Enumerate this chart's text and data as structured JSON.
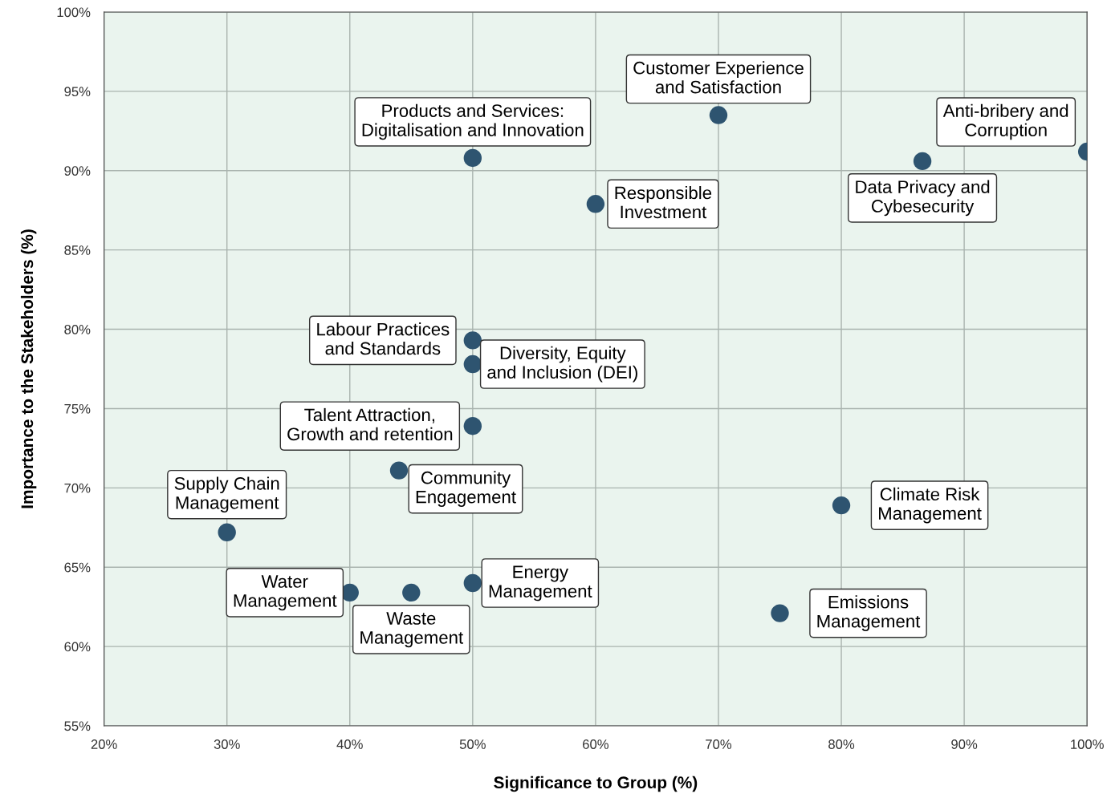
{
  "chart_data": {
    "type": "scatter",
    "xlabel": "Significance to Group (%)",
    "ylabel": "Importance to the Stakeholders (%)",
    "x": [
      70,
      50,
      60,
      100,
      86.6,
      50,
      50,
      50,
      44,
      30,
      80,
      40,
      45,
      50,
      75
    ],
    "series": [
      {
        "color": "#2e5470",
        "values": [
          93.5,
          90.8,
          87.9,
          91.2,
          90.6,
          79.3,
          77.8,
          73.9,
          71.1,
          67.2,
          68.9,
          63.4,
          63.4,
          64.0,
          62.1
        ]
      }
    ],
    "annotations": [
      {
        "text": "Customer Experience\nand Satisfaction",
        "x": 70,
        "y": 93.5
      },
      {
        "text": "Products and Services:\nDigitalisation and Innovation",
        "x": 50,
        "y": 90.8
      },
      {
        "text": "Responsible\nInvestment",
        "x": 60,
        "y": 87.9
      },
      {
        "text": "Anti-bribery and\nCorruption",
        "x": 100,
        "y": 91.2
      },
      {
        "text": "Data Privacy and\nCybesecurity",
        "x": 86.6,
        "y": 90.6
      },
      {
        "text": "Labour Practices\nand Standards",
        "x": 50,
        "y": 79.3
      },
      {
        "text": "Diversity, Equity\nand Inclusion (DEI)",
        "x": 50,
        "y": 77.8
      },
      {
        "text": "Talent Attraction,\nGrowth and retention",
        "x": 50,
        "y": 73.9
      },
      {
        "text": "Community\nEngagement",
        "x": 44,
        "y": 71.1
      },
      {
        "text": "Supply Chain\nManagement",
        "x": 30,
        "y": 67.2
      },
      {
        "text": "Climate Risk\nManagement",
        "x": 80,
        "y": 68.9
      },
      {
        "text": "Water\nManagement",
        "x": 40,
        "y": 63.4
      },
      {
        "text": "Waste\nManagement",
        "x": 45,
        "y": 63.4
      },
      {
        "text": "Energy\nManagement",
        "x": 50,
        "y": 64.0
      },
      {
        "text": "Emissions\nManagement",
        "x": 75,
        "y": 62.1
      }
    ],
    "xlim": [
      20,
      100
    ],
    "xticks": [
      {
        "value": 20,
        "label": "20%"
      },
      {
        "value": 30,
        "label": "30%"
      },
      {
        "value": 40,
        "label": "40%"
      },
      {
        "value": 50,
        "label": "50%"
      },
      {
        "value": 60,
        "label": "60%"
      },
      {
        "value": 70,
        "label": "70%"
      },
      {
        "value": 80,
        "label": "80%"
      },
      {
        "value": 90,
        "label": "90%"
      },
      {
        "value": 100,
        "label": "100%"
      }
    ],
    "ylim": [
      55,
      100
    ],
    "yticks": [
      {
        "value": 55,
        "label": "55%"
      },
      {
        "value": 60,
        "label": "60%"
      },
      {
        "value": 65,
        "label": "65%"
      },
      {
        "value": 70,
        "label": "70%"
      },
      {
        "value": 75,
        "label": "75%"
      },
      {
        "value": 80,
        "label": "80%"
      },
      {
        "value": 85,
        "label": "85%"
      },
      {
        "value": 90,
        "label": "90%"
      },
      {
        "value": 95,
        "label": "95%"
      },
      {
        "value": 100,
        "label": "100%"
      }
    ],
    "grid": true,
    "marker": "circle"
  }
}
